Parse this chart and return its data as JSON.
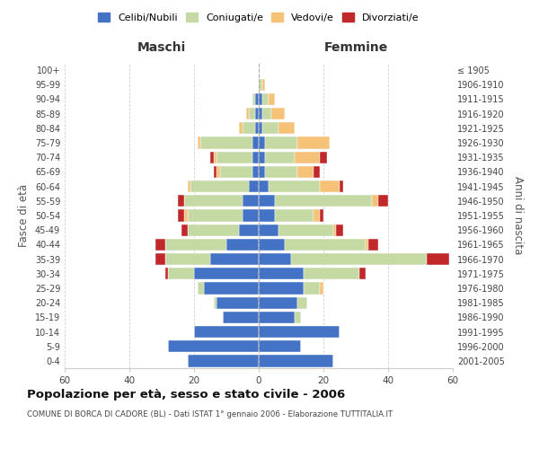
{
  "age_groups": [
    "0-4",
    "5-9",
    "10-14",
    "15-19",
    "20-24",
    "25-29",
    "30-34",
    "35-39",
    "40-44",
    "45-49",
    "50-54",
    "55-59",
    "60-64",
    "65-69",
    "70-74",
    "75-79",
    "80-84",
    "85-89",
    "90-94",
    "95-99",
    "100+"
  ],
  "birth_years": [
    "2001-2005",
    "1996-2000",
    "1991-1995",
    "1986-1990",
    "1981-1985",
    "1976-1980",
    "1971-1975",
    "1966-1970",
    "1961-1965",
    "1956-1960",
    "1951-1955",
    "1946-1950",
    "1941-1945",
    "1936-1940",
    "1931-1935",
    "1926-1930",
    "1921-1925",
    "1916-1920",
    "1911-1915",
    "1906-1910",
    "≤ 1905"
  ],
  "male_celibi": [
    22,
    28,
    20,
    11,
    13,
    17,
    20,
    15,
    10,
    6,
    5,
    5,
    3,
    2,
    2,
    2,
    1,
    1,
    1,
    0,
    0
  ],
  "male_coniugati": [
    0,
    0,
    0,
    0,
    1,
    2,
    8,
    14,
    19,
    16,
    17,
    18,
    18,
    10,
    11,
    16,
    4,
    2,
    1,
    0,
    0
  ],
  "male_vedovi": [
    0,
    0,
    0,
    0,
    0,
    0,
    0,
    0,
    0,
    0,
    1,
    0,
    1,
    1,
    1,
    1,
    1,
    1,
    0,
    0,
    0
  ],
  "male_divorziati": [
    0,
    0,
    0,
    0,
    0,
    0,
    1,
    3,
    3,
    2,
    2,
    2,
    0,
    1,
    1,
    0,
    0,
    0,
    0,
    0,
    0
  ],
  "female_celibi": [
    23,
    13,
    25,
    11,
    12,
    14,
    14,
    10,
    8,
    6,
    5,
    5,
    3,
    2,
    2,
    2,
    1,
    1,
    1,
    0,
    0
  ],
  "female_coniugati": [
    0,
    0,
    0,
    2,
    3,
    5,
    17,
    42,
    25,
    17,
    12,
    30,
    16,
    10,
    9,
    10,
    5,
    3,
    2,
    1,
    0
  ],
  "female_vedovi": [
    0,
    0,
    0,
    0,
    0,
    1,
    0,
    0,
    1,
    1,
    2,
    2,
    6,
    5,
    8,
    10,
    5,
    4,
    2,
    1,
    0
  ],
  "female_divorziati": [
    0,
    0,
    0,
    0,
    0,
    0,
    2,
    7,
    3,
    2,
    1,
    3,
    1,
    2,
    2,
    0,
    0,
    0,
    0,
    0,
    0
  ],
  "colors": {
    "celibi": "#4472c4",
    "coniugati": "#c5d9a5",
    "vedovi": "#f6c278",
    "divorziati": "#c0282a"
  },
  "title": "Popolazione per età, sesso e stato civile - 2006",
  "subtitle": "COMUNE DI BORCA DI CADORE (BL) - Dati ISTAT 1° gennaio 2006 - Elaborazione TUTTITALIA.IT",
  "xlabel_left": "Maschi",
  "xlabel_right": "Femmine",
  "ylabel_left": "Fasce di età",
  "ylabel_right": "Anni di nascita",
  "xlim": 60,
  "background_color": "#ffffff",
  "grid_color": "#cccccc"
}
